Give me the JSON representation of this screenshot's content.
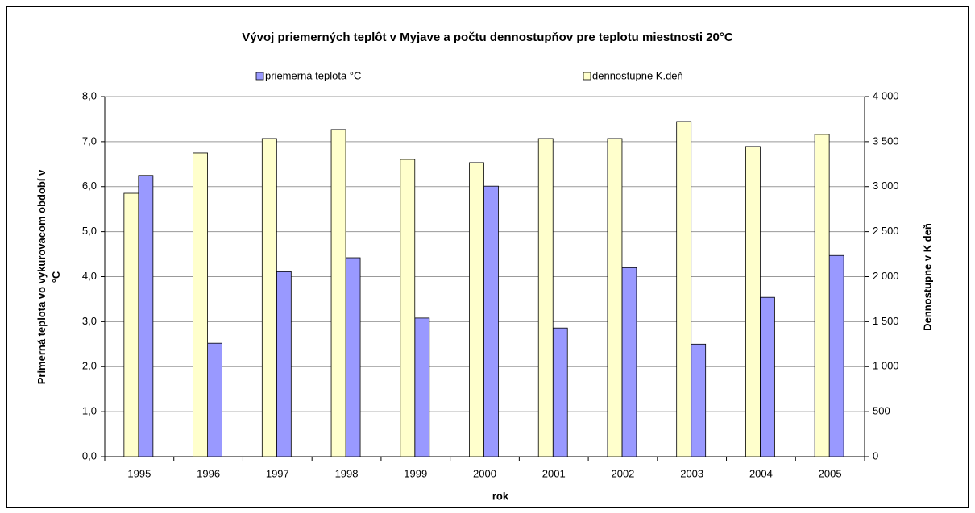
{
  "chart_data": {
    "type": "bar",
    "title": "Vývoj priemerných teplôt v Myjave a počtu dennostupňov pre teplotu miestnosti 20°C",
    "categories": [
      "1995",
      "1996",
      "1997",
      "1998",
      "1999",
      "2000",
      "2001",
      "2002",
      "2003",
      "2004",
      "2005"
    ],
    "series": [
      {
        "name": "priemerná teplota °C",
        "color": "#9999ff",
        "axis": "y",
        "values": [
          6.25,
          2.52,
          4.11,
          4.42,
          3.08,
          6.01,
          2.86,
          4.2,
          2.5,
          3.54,
          4.47
        ]
      },
      {
        "name": "dennostupne K.deň",
        "color": "#ffffcc",
        "axis": "y2",
        "values": [
          2926,
          3374,
          3535,
          3634,
          3302,
          3267,
          3535,
          3535,
          3723,
          3446,
          3580
        ]
      }
    ],
    "xlabel": "rok",
    "ylabel": "Primerná teplota vo vykurovacom období v °C",
    "y2label": "Dennostupne v K deň",
    "ylim": [
      0,
      8
    ],
    "yticks": [
      {
        "value": 0,
        "label": "0,0"
      },
      {
        "value": 1,
        "label": "1,0"
      },
      {
        "value": 2,
        "label": "2,0"
      },
      {
        "value": 3,
        "label": "3,0"
      },
      {
        "value": 4,
        "label": "4,0"
      },
      {
        "value": 5,
        "label": "5,0"
      },
      {
        "value": 6,
        "label": "6,0"
      },
      {
        "value": 7,
        "label": "7,0"
      },
      {
        "value": 8,
        "label": "8,0"
      }
    ],
    "y2lim": [
      0,
      4000
    ],
    "y2ticks": [
      0,
      500,
      {
        "value": 1000,
        "label": "1 000"
      },
      {
        "value": 1500,
        "label": "1 500"
      },
      {
        "value": 2000,
        "label": "2 000"
      },
      {
        "value": 2500,
        "label": "2 500"
      },
      {
        "value": 3000,
        "label": "3 000"
      },
      {
        "value": 3500,
        "label": "3 500"
      },
      {
        "value": 4000,
        "label": "4 000"
      }
    ],
    "grid": true,
    "legend": "top"
  }
}
